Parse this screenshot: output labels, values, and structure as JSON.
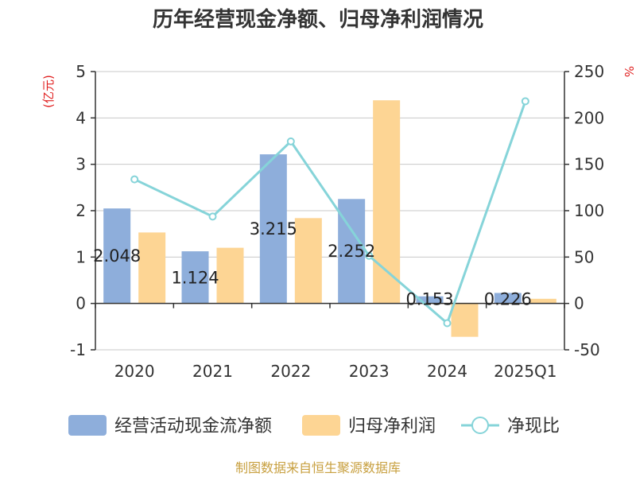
{
  "chart_data": {
    "type": "bar",
    "title": "历年经营现金净额、归母净利润情况",
    "y_left_unit": "(亿元)",
    "y_right_unit": "%",
    "categories": [
      "2020",
      "2021",
      "2022",
      "2023",
      "2024",
      "2025Q1"
    ],
    "y_left": {
      "ylim": [
        -1,
        5
      ],
      "ticks": [
        "-1",
        "0",
        "1",
        "2",
        "3",
        "4",
        "5"
      ]
    },
    "y_right": {
      "ylim": [
        -50,
        250
      ],
      "ticks": [
        "-50",
        "0",
        "50",
        "100",
        "150",
        "200",
        "250"
      ]
    },
    "grid": true,
    "legend_position": "bottom",
    "series": [
      {
        "name": "经营活动现金流净额",
        "kind": "bar",
        "axis": "left",
        "color": "#8eaedb",
        "values": [
          2.048,
          1.124,
          3.215,
          2.252,
          0.153,
          0.226
        ],
        "labels": [
          "2.048",
          "1.124",
          "3.215",
          "2.252",
          "0.153",
          "0.226"
        ]
      },
      {
        "name": "归母净利润",
        "kind": "bar",
        "axis": "left",
        "color": "#fdd594",
        "values": [
          1.53,
          1.2,
          1.84,
          4.38,
          -0.72,
          0.1
        ]
      },
      {
        "name": "净现比",
        "kind": "line",
        "axis": "right",
        "color": "#86d4d9",
        "values": [
          133.8,
          93.7,
          174.7,
          51.4,
          -21.3,
          218.0
        ]
      }
    ],
    "source": "制图数据来自恒生聚源数据库"
  }
}
